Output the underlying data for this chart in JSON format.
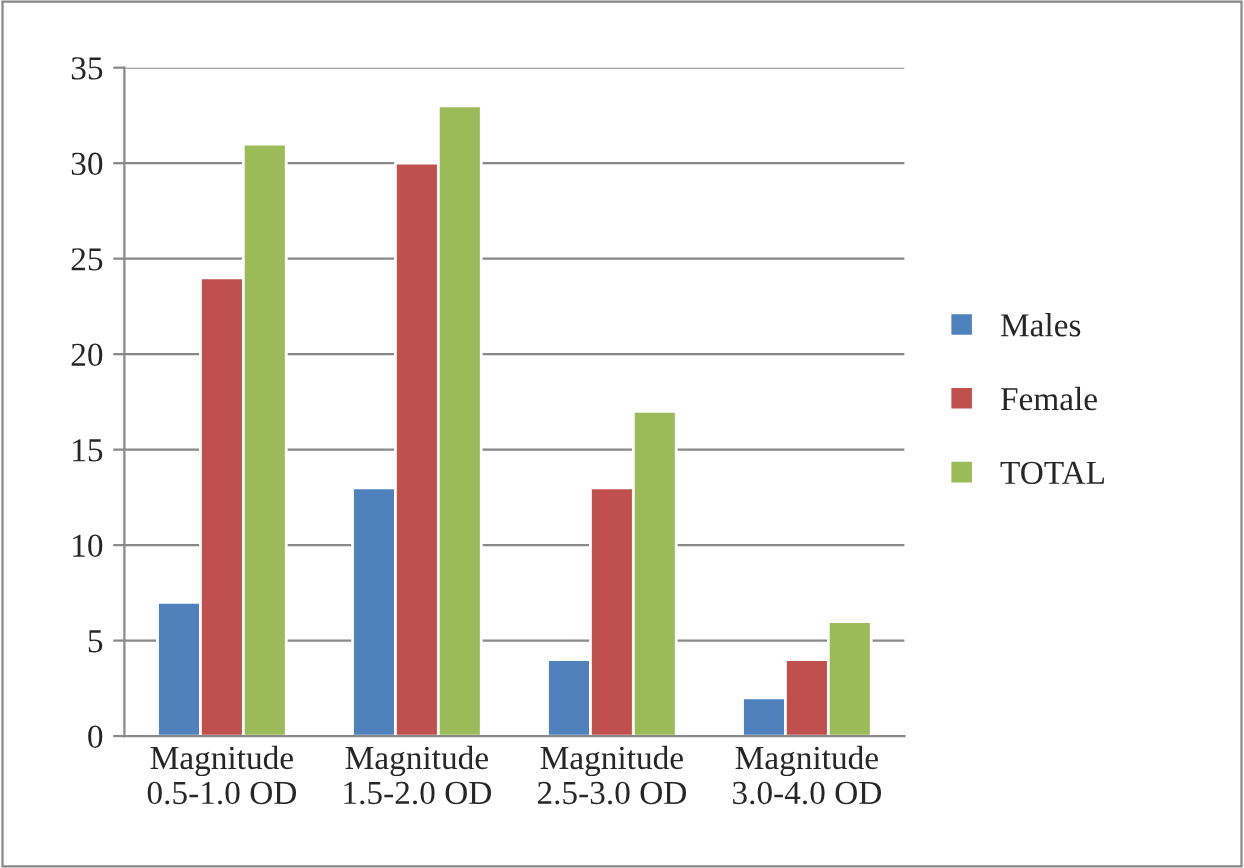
{
  "chart_data": {
    "type": "bar",
    "categories": [
      "Magnitude\n0.5-1.0 OD",
      "Magnitude\n1.5-2.0 OD",
      "Magnitude\n2.5-3.0 OD",
      "Magnitude\n3.0-4.0 OD"
    ],
    "series": [
      {
        "name": "Males",
        "color": "#4f81bd",
        "values": [
          7,
          13,
          4,
          2
        ]
      },
      {
        "name": "Female",
        "color": "#c0504d",
        "values": [
          24,
          30,
          13,
          4
        ]
      },
      {
        "name": "TOTAL",
        "color": "#9bbb59",
        "values": [
          31,
          33,
          17,
          6
        ]
      }
    ],
    "ylim": [
      0,
      35
    ],
    "yticks": [
      0,
      5,
      10,
      15,
      20,
      25,
      30,
      35
    ],
    "grid": "y",
    "legend": "right"
  }
}
